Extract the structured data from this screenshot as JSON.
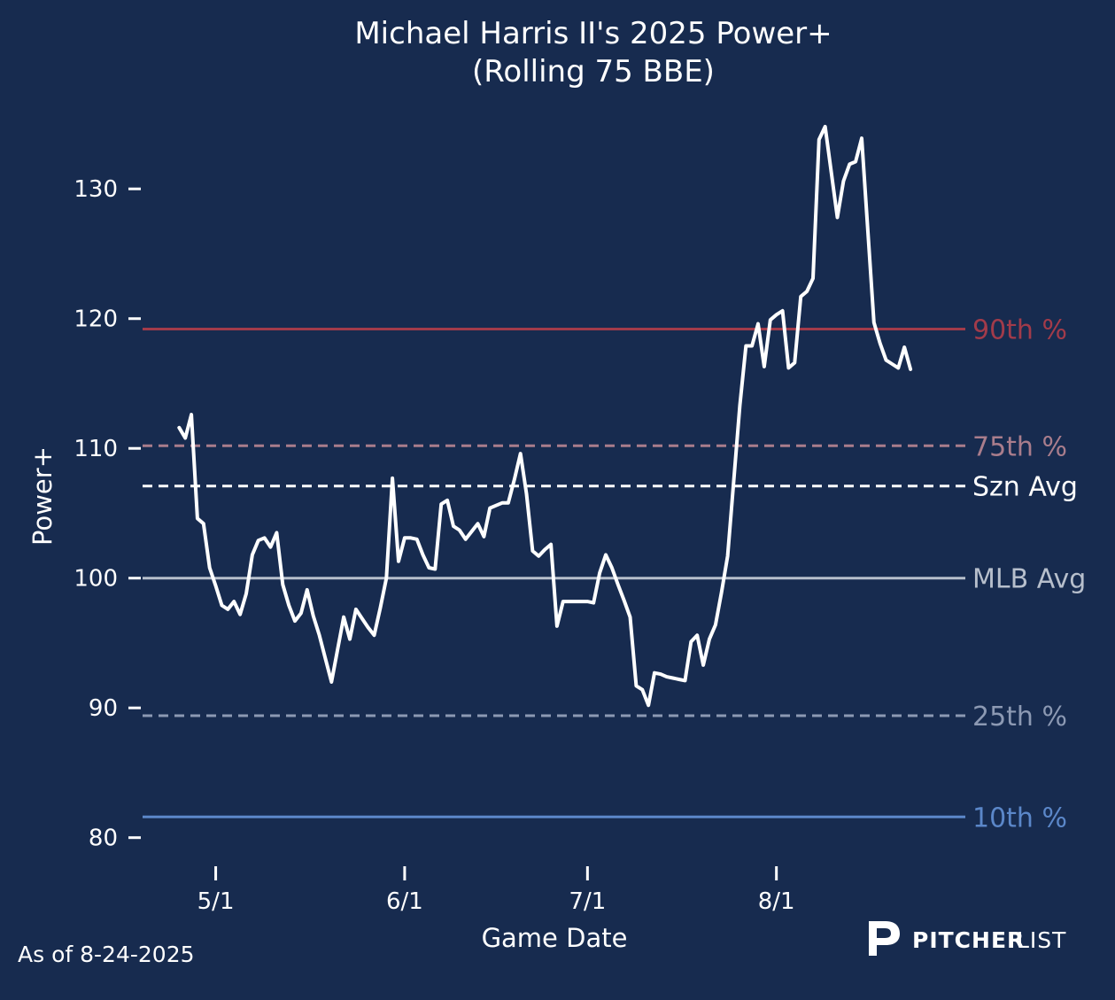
{
  "chart_data": {
    "type": "line",
    "title": "Michael Harris II's 2025 Power+",
    "subtitle": "(Rolling 75 BBE)",
    "xlabel": "Game Date",
    "ylabel": "Power+",
    "x_ticks": [
      "5/1",
      "6/1",
      "7/1",
      "8/1"
    ],
    "y_ticks": [
      80,
      90,
      100,
      110,
      120,
      130
    ],
    "ylim": [
      78,
      135
    ],
    "xlim": [
      "2025-04-19",
      "2025-09-01"
    ],
    "grid": false,
    "reference_lines": [
      {
        "label": "90th %",
        "value": 119.2,
        "color": "#a23b4a",
        "style": "solid"
      },
      {
        "label": "75th %",
        "value": 110.2,
        "color": "#a97d8c",
        "style": "dashed"
      },
      {
        "label": "Szn Avg",
        "value": 107.1,
        "color": "#ffffff",
        "style": "dashed"
      },
      {
        "label": "MLB Avg",
        "value": 100.0,
        "color": "#b7bfcc",
        "style": "solid"
      },
      {
        "label": "25th %",
        "value": 89.4,
        "color": "#8c99b3",
        "style": "dashed"
      },
      {
        "label": "10th %",
        "value": 81.6,
        "color": "#5b87c9",
        "style": "solid"
      }
    ],
    "series": [
      {
        "color": "#ffffff",
        "points": [
          [
            "2025-04-25",
            111.6
          ],
          [
            "2025-04-26",
            110.8
          ],
          [
            "2025-04-27",
            112.6
          ],
          [
            "2025-04-28",
            104.6
          ],
          [
            "2025-04-29",
            104.2
          ],
          [
            "2025-04-30",
            100.8
          ],
          [
            "2025-05-01",
            99.4
          ],
          [
            "2025-05-02",
            97.9
          ],
          [
            "2025-05-03",
            97.6
          ],
          [
            "2025-05-04",
            98.2
          ],
          [
            "2025-05-05",
            97.2
          ],
          [
            "2025-05-06",
            98.8
          ],
          [
            "2025-05-07",
            101.8
          ],
          [
            "2025-05-08",
            102.9
          ],
          [
            "2025-05-09",
            103.1
          ],
          [
            "2025-05-10",
            102.4
          ],
          [
            "2025-05-11",
            103.5
          ],
          [
            "2025-05-12",
            99.5
          ],
          [
            "2025-05-13",
            97.9
          ],
          [
            "2025-05-14",
            96.7
          ],
          [
            "2025-05-15",
            97.3
          ],
          [
            "2025-05-16",
            99.1
          ],
          [
            "2025-05-17",
            97.1
          ],
          [
            "2025-05-18",
            95.6
          ],
          [
            "2025-05-19",
            93.8
          ],
          [
            "2025-05-20",
            92.0
          ],
          [
            "2025-05-21",
            94.5
          ],
          [
            "2025-05-22",
            97.0
          ],
          [
            "2025-05-23",
            95.3
          ],
          [
            "2025-05-24",
            97.6
          ],
          [
            "2025-05-25",
            96.9
          ],
          [
            "2025-05-26",
            96.2
          ],
          [
            "2025-05-27",
            95.6
          ],
          [
            "2025-05-28",
            97.7
          ],
          [
            "2025-05-29",
            100.0
          ],
          [
            "2025-05-30",
            107.7
          ],
          [
            "2025-05-31",
            101.3
          ],
          [
            "2025-06-01",
            103.1
          ],
          [
            "2025-06-02",
            103.1
          ],
          [
            "2025-06-03",
            103.0
          ],
          [
            "2025-06-04",
            101.8
          ],
          [
            "2025-06-05",
            100.8
          ],
          [
            "2025-06-06",
            100.7
          ],
          [
            "2025-06-07",
            105.7
          ],
          [
            "2025-06-08",
            106.0
          ],
          [
            "2025-06-09",
            104.0
          ],
          [
            "2025-06-10",
            103.7
          ],
          [
            "2025-06-11",
            103.0
          ],
          [
            "2025-06-12",
            103.6
          ],
          [
            "2025-06-13",
            104.2
          ],
          [
            "2025-06-14",
            103.2
          ],
          [
            "2025-06-15",
            105.4
          ],
          [
            "2025-06-16",
            105.6
          ],
          [
            "2025-06-17",
            105.8
          ],
          [
            "2025-06-18",
            105.8
          ],
          [
            "2025-06-19",
            107.6
          ],
          [
            "2025-06-20",
            109.6
          ],
          [
            "2025-06-21",
            106.5
          ],
          [
            "2025-06-22",
            102.1
          ],
          [
            "2025-06-23",
            101.7
          ],
          [
            "2025-06-24",
            102.2
          ],
          [
            "2025-06-25",
            102.6
          ],
          [
            "2025-06-26",
            96.3
          ],
          [
            "2025-06-27",
            98.2
          ],
          [
            "2025-06-28",
            98.2
          ],
          [
            "2025-06-29",
            98.2
          ],
          [
            "2025-06-30",
            98.2
          ],
          [
            "2025-07-01",
            98.2
          ],
          [
            "2025-07-02",
            98.1
          ],
          [
            "2025-07-03",
            100.4
          ],
          [
            "2025-07-04",
            101.8
          ],
          [
            "2025-07-05",
            100.8
          ],
          [
            "2025-07-06",
            99.5
          ],
          [
            "2025-07-07",
            98.3
          ],
          [
            "2025-07-08",
            97.0
          ],
          [
            "2025-07-09",
            91.7
          ],
          [
            "2025-07-10",
            91.4
          ],
          [
            "2025-07-11",
            90.2
          ],
          [
            "2025-07-12",
            92.7
          ],
          [
            "2025-07-13",
            92.6
          ],
          [
            "2025-07-14",
            92.4
          ],
          [
            "2025-07-15",
            92.3
          ],
          [
            "2025-07-16",
            92.2
          ],
          [
            "2025-07-17",
            92.1
          ],
          [
            "2025-07-18",
            95.1
          ],
          [
            "2025-07-19",
            95.6
          ],
          [
            "2025-07-20",
            93.3
          ],
          [
            "2025-07-21",
            95.3
          ],
          [
            "2025-07-22",
            96.4
          ],
          [
            "2025-07-23",
            98.9
          ],
          [
            "2025-07-24",
            101.7
          ],
          [
            "2025-07-25",
            107.5
          ],
          [
            "2025-07-26",
            113.3
          ],
          [
            "2025-07-27",
            117.9
          ],
          [
            "2025-07-28",
            117.9
          ],
          [
            "2025-07-29",
            119.6
          ],
          [
            "2025-07-30",
            116.3
          ],
          [
            "2025-07-31",
            119.9
          ],
          [
            "2025-08-01",
            120.3
          ],
          [
            "2025-08-02",
            120.6
          ],
          [
            "2025-08-03",
            116.2
          ],
          [
            "2025-08-04",
            116.6
          ],
          [
            "2025-08-05",
            121.7
          ],
          [
            "2025-08-06",
            122.1
          ],
          [
            "2025-08-07",
            123.1
          ],
          [
            "2025-08-08",
            133.8
          ],
          [
            "2025-08-09",
            134.8
          ],
          [
            "2025-08-10",
            131.3
          ],
          [
            "2025-08-11",
            127.8
          ],
          [
            "2025-08-12",
            130.6
          ],
          [
            "2025-08-13",
            131.9
          ],
          [
            "2025-08-14",
            132.1
          ],
          [
            "2025-08-15",
            133.9
          ],
          [
            "2025-08-16",
            126.8
          ],
          [
            "2025-08-17",
            119.7
          ],
          [
            "2025-08-18",
            118.1
          ],
          [
            "2025-08-19",
            116.8
          ],
          [
            "2025-08-20",
            116.5
          ],
          [
            "2025-08-21",
            116.2
          ],
          [
            "2025-08-22",
            117.8
          ],
          [
            "2025-08-23",
            116.1
          ]
        ]
      }
    ]
  },
  "footer": {
    "as_of": "As of 8-24-2025",
    "brand_bold": "PITCHER",
    "brand_light": "LIST"
  }
}
